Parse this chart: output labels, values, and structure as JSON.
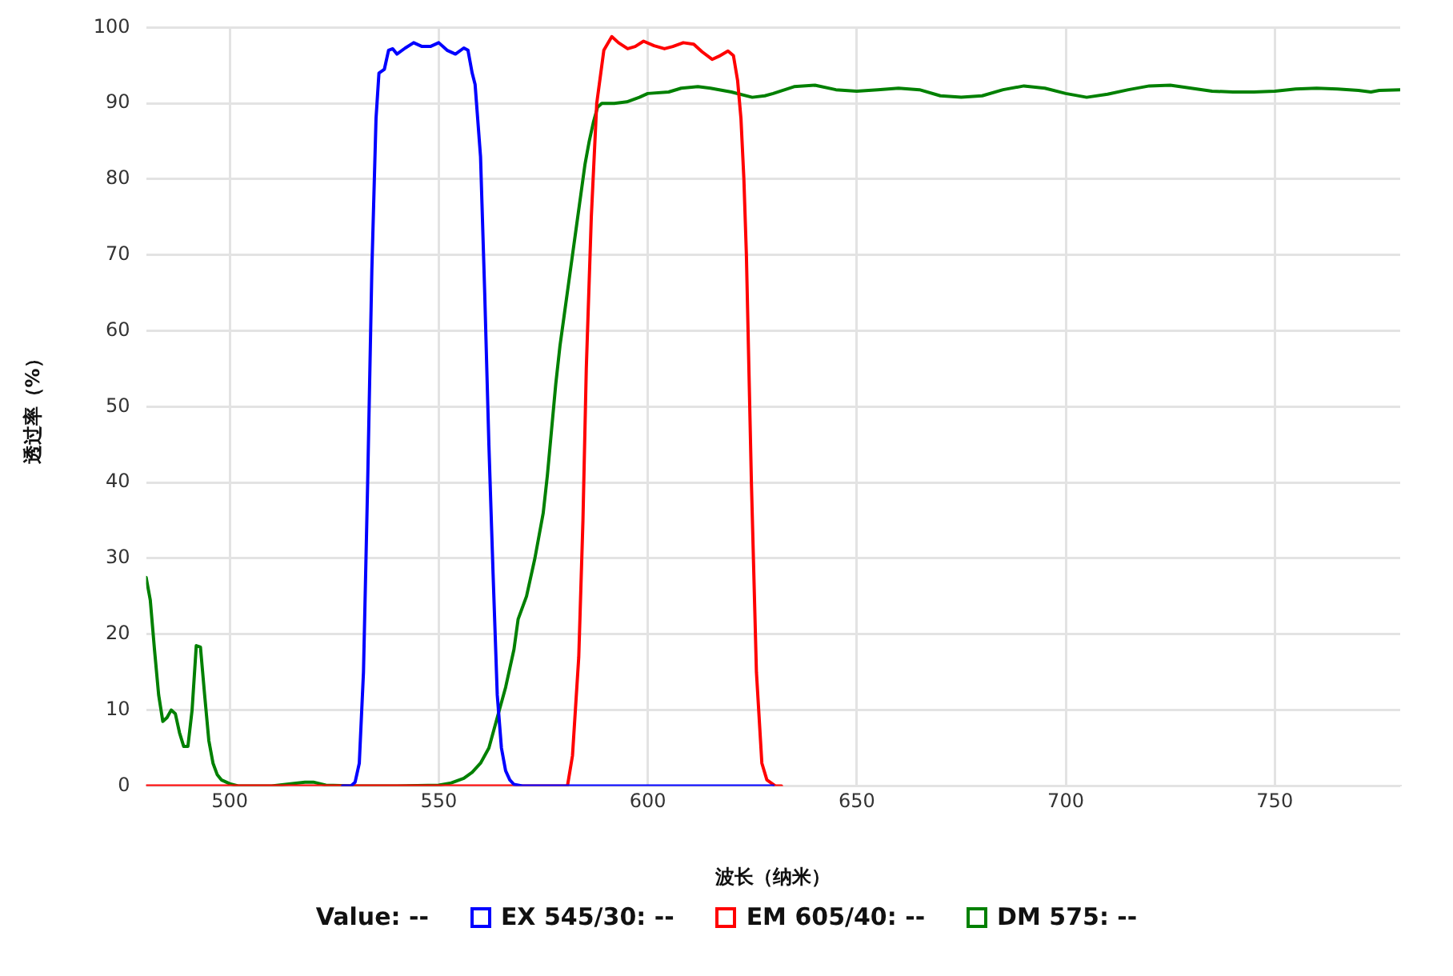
{
  "chart_data": {
    "type": "line",
    "xlabel": "波长（纳米）",
    "ylabel": "透过率（%）",
    "xlim": [
      480,
      780
    ],
    "xticks": [
      500,
      550,
      600,
      650,
      700,
      750
    ],
    "ylim": [
      0,
      100
    ],
    "yticks": [
      0,
      10,
      20,
      30,
      40,
      50,
      60,
      70,
      80,
      90,
      100
    ],
    "grid": true,
    "legend": "bottom",
    "marker": "none",
    "line_style": "solid",
    "annotations": [
      "Value: --"
    ],
    "series": [
      {
        "name": "EX 545/30: --",
        "color": "#0000ff",
        "x": [
          527,
          529,
          530,
          531,
          532,
          533,
          534,
          535,
          535.7,
          537,
          538,
          539,
          540,
          542,
          544,
          546,
          548,
          550,
          552,
          554,
          556,
          557,
          558,
          558.7,
          560,
          561,
          562,
          563,
          564,
          565,
          566,
          567,
          568,
          570,
          580,
          600,
          630
        ],
        "values": [
          0,
          0,
          0.5,
          3,
          15,
          40,
          68,
          88,
          94,
          94.5,
          97,
          97.2,
          96.5,
          97.3,
          98,
          97.5,
          97.5,
          98,
          97,
          96.5,
          97.3,
          97,
          94,
          92.5,
          83,
          65,
          45,
          28,
          12,
          5,
          2,
          0.8,
          0.2,
          0,
          0,
          0,
          0
        ]
      },
      {
        "name": "EM 605/40: --",
        "color": "#ff0000",
        "x": [
          480,
          500,
          550,
          578,
          580.8,
          582,
          583.5,
          584.5,
          585.3,
          586.5,
          587.8,
          589.5,
          591.4,
          593,
          595.2,
          597,
          599,
          601.5,
          604,
          606,
          608.5,
          611,
          613,
          615.4,
          617,
          619.2,
          620.5,
          621.5,
          622.3,
          623,
          623.6,
          624.8,
          626,
          627.3,
          628.5,
          630.5,
          632
        ],
        "values": [
          0,
          0,
          0,
          0,
          0,
          4,
          17,
          35,
          55,
          75,
          90,
          97,
          98.8,
          98,
          97.2,
          97.5,
          98.2,
          97.6,
          97.2,
          97.5,
          98,
          97.8,
          96.8,
          95.8,
          96.2,
          96.9,
          96.3,
          93,
          88,
          80,
          70,
          40,
          15,
          3,
          0.8,
          0,
          0
        ]
      },
      {
        "name": "DM 575: --",
        "color": "#008000",
        "x": [
          480,
          481,
          482,
          483,
          484,
          485,
          486,
          487,
          488,
          489,
          490,
          491,
          492,
          493,
          494,
          495,
          496,
          497,
          498,
          500,
          502,
          510,
          515,
          518,
          520,
          523,
          530,
          540,
          550,
          553,
          556,
          558,
          560,
          562,
          564,
          566,
          568,
          569,
          571,
          573,
          575,
          576,
          577,
          578,
          579,
          580,
          581,
          582,
          583,
          584,
          585,
          586,
          587,
          588,
          589,
          592,
          595,
          598,
          600,
          605,
          608,
          612,
          615,
          620,
          625,
          628,
          630,
          635,
          640,
          645,
          650,
          655,
          660,
          665,
          670,
          675,
          680,
          685,
          690,
          695,
          700,
          705,
          710,
          715,
          720,
          725,
          730,
          735,
          740,
          745,
          750,
          755,
          760,
          765,
          770,
          773,
          775,
          780
        ],
        "values": [
          27.5,
          24.5,
          18,
          12,
          8.5,
          9,
          10,
          9.5,
          7,
          5.2,
          5.2,
          10,
          18.5,
          18.3,
          12,
          6,
          3,
          1.5,
          0.8,
          0.3,
          0,
          0,
          0.3,
          0.5,
          0.5,
          0.1,
          0,
          0,
          0.1,
          0.4,
          1,
          1.8,
          3,
          5,
          9,
          13,
          18,
          22,
          25,
          30,
          36,
          41,
          47,
          53,
          58,
          62,
          66,
          70,
          74,
          78,
          82,
          85,
          87.5,
          89.5,
          90,
          90,
          90.2,
          90.8,
          91.3,
          91.5,
          92,
          92.2,
          92,
          91.5,
          90.8,
          91,
          91.3,
          92.2,
          92.4,
          91.8,
          91.6,
          91.8,
          92,
          91.8,
          91,
          90.8,
          91,
          91.8,
          92.3,
          92,
          91.3,
          90.8,
          91.2,
          91.8,
          92.3,
          92.4,
          92,
          91.6,
          91.5,
          91.5,
          91.6,
          91.9,
          92,
          91.9,
          91.7,
          91.5,
          91.7,
          91.8
        ]
      }
    ]
  }
}
